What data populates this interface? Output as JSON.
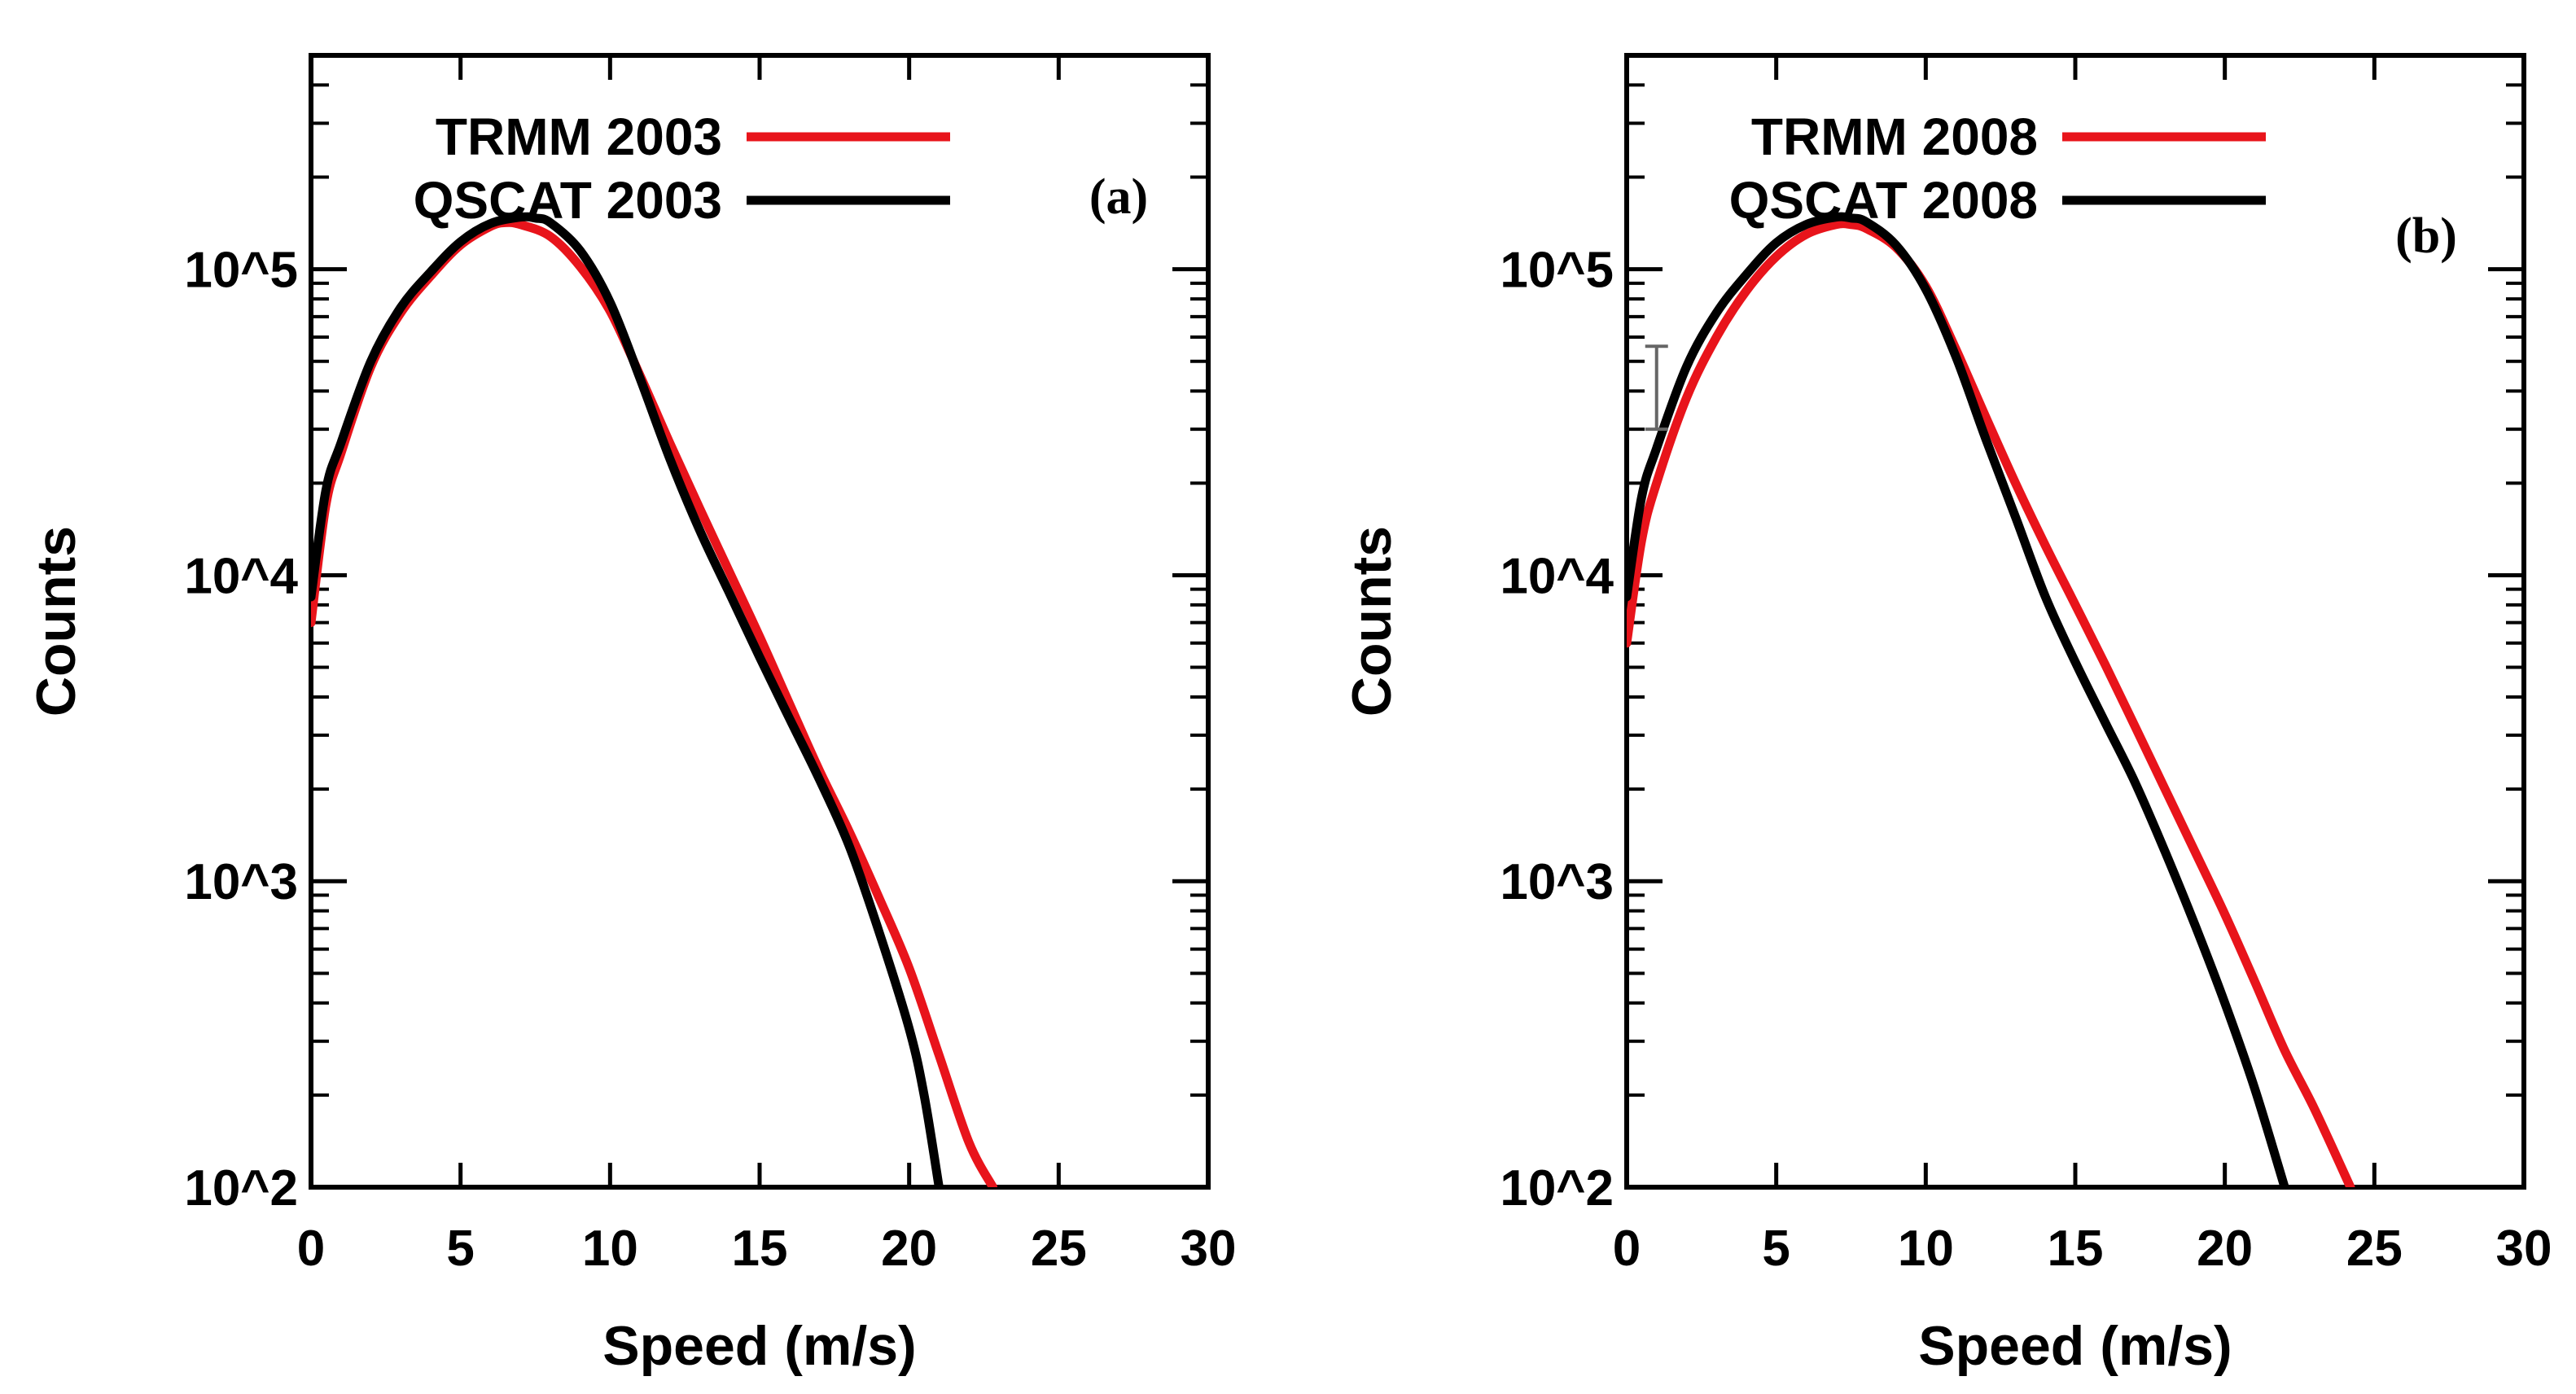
{
  "chart_data": [
    {
      "type": "line",
      "panel_label": "(a)",
      "xlabel": "Speed (m/s)",
      "ylabel": "Counts",
      "xlim": [
        0,
        30
      ],
      "ylim": [
        100,
        500000
      ],
      "yscale": "log",
      "xticks": [
        0,
        5,
        10,
        15,
        20,
        25,
        30
      ],
      "xtick_labels": [
        "0",
        "5",
        "10",
        "15",
        "20",
        "25",
        "30"
      ],
      "yticks": [
        100,
        1000,
        10000,
        100000
      ],
      "ytick_labels": [
        "10^2",
        "10^3",
        "10^4",
        "10^5"
      ],
      "legend_position": "top-left",
      "series": [
        {
          "name": "TRMM 2003",
          "color": "#e8141b",
          "x": [
            0,
            0.5,
            1,
            2,
            3,
            4,
            5,
            6,
            6.5,
            7,
            8,
            9,
            10,
            11,
            12,
            13,
            14,
            15,
            16,
            17,
            18,
            19,
            20,
            21,
            22,
            22.8
          ],
          "y": [
            7000,
            17000,
            25000,
            48000,
            72000,
            95000,
            120000,
            138000,
            142000,
            140000,
            128000,
            102000,
            73000,
            45000,
            27000,
            16500,
            10200,
            6300,
            3800,
            2300,
            1450,
            880,
            520,
            270,
            140,
            100
          ]
        },
        {
          "name": "QSCAT 2003",
          "color": "#000000",
          "x": [
            0,
            0.5,
            1,
            2,
            3,
            4,
            5,
            6,
            7,
            7.5,
            8,
            9,
            10,
            11,
            12,
            13,
            14,
            15,
            16,
            17,
            18,
            19,
            20,
            20.5,
            21
          ],
          "y": [
            8500,
            19000,
            27000,
            50000,
            75000,
            98000,
            123000,
            141000,
            148000,
            147000,
            142000,
            115000,
            78000,
            44000,
            24000,
            14000,
            8700,
            5400,
            3400,
            2150,
            1300,
            680,
            330,
            200,
            100
          ]
        }
      ]
    },
    {
      "type": "line",
      "panel_label": "(b)",
      "xlabel": "Speed (m/s)",
      "ylabel": "Counts",
      "xlim": [
        0,
        30
      ],
      "ylim": [
        100,
        500000
      ],
      "yscale": "log",
      "xticks": [
        0,
        5,
        10,
        15,
        20,
        25,
        30
      ],
      "xtick_labels": [
        "0",
        "5",
        "10",
        "15",
        "20",
        "25",
        "30"
      ],
      "yticks": [
        100,
        1000,
        10000,
        100000
      ],
      "ytick_labels": [
        "10^2",
        "10^3",
        "10^4",
        "10^5"
      ],
      "legend_position": "top-left",
      "error_bar": {
        "x": 1,
        "y_low": 30000,
        "y_high": 56000
      },
      "series": [
        {
          "name": "TRMM 2008",
          "color": "#e8141b",
          "x": [
            0,
            0.5,
            1,
            2,
            3,
            4,
            5,
            6,
            7,
            7.5,
            8,
            9,
            10,
            11,
            12,
            13,
            14,
            15,
            16,
            17,
            18,
            19,
            20,
            21,
            22,
            23,
            24.2
          ],
          "y": [
            6000,
            13000,
            20000,
            38000,
            60000,
            85000,
            110000,
            130000,
            140000,
            140000,
            136000,
            118000,
            88000,
            55000,
            33000,
            20000,
            12500,
            8000,
            5100,
            3200,
            2000,
            1250,
            780,
            470,
            280,
            180,
            100
          ]
        },
        {
          "name": "QSCAT 2008",
          "color": "#000000",
          "x": [
            0,
            0.5,
            1,
            2,
            3,
            4,
            5,
            6,
            7,
            7.5,
            8,
            9,
            10,
            11,
            12,
            13,
            14,
            15,
            16,
            17,
            18,
            19,
            20,
            21,
            22
          ],
          "y": [
            8500,
            18000,
            26000,
            48000,
            72000,
            96000,
            122000,
            140000,
            148000,
            147000,
            143000,
            120000,
            86000,
            52000,
            28000,
            15500,
            8500,
            5200,
            3300,
            2100,
            1250,
            720,
            400,
            210,
            100
          ]
        }
      ]
    }
  ]
}
